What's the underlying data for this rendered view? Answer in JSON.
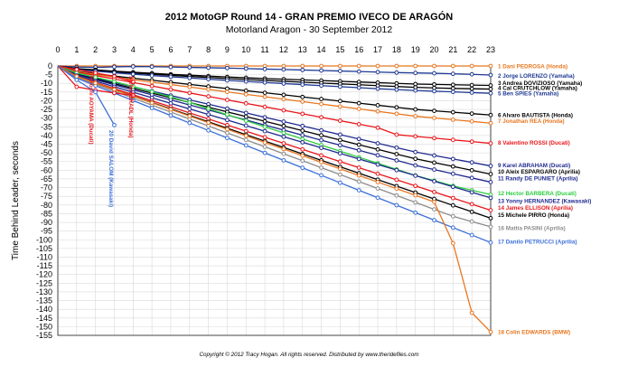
{
  "chart_data": {
    "type": "line",
    "title": "2012 MotoGP Round 14 - GRAN PREMIO IVECO DE ARAGÓN",
    "subtitle": "Motorland Aragon - 30 September 2012",
    "xlabel": "",
    "ylabel": "Time Behind Leader, seconds",
    "xlim": [
      0,
      23
    ],
    "ylim": [
      -155,
      0
    ],
    "x_ticks": [
      "0",
      "1",
      "2",
      "3",
      "4",
      "5",
      "6",
      "7",
      "8",
      "9",
      "10",
      "11",
      "12",
      "13",
      "14",
      "15",
      "16",
      "17",
      "18",
      "19",
      "20",
      "21",
      "22",
      "23"
    ],
    "y_ticks": [
      "0",
      "-5",
      "-10",
      "-15",
      "-20",
      "-25",
      "-30",
      "-35",
      "-40",
      "-45",
      "-50",
      "-55",
      "-60",
      "-65",
      "-70",
      "-75",
      "-80",
      "-85",
      "-90",
      "-95",
      "-100",
      "-105",
      "-110",
      "-115",
      "-120",
      "-125",
      "-130",
      "-135",
      "-140",
      "-145",
      "-150",
      "-155"
    ],
    "grid": true,
    "footer": "Copyright © 2012 Tracy Hogan. All rights reserved. Distributed by www.theridefiles.com",
    "series": [
      {
        "name": "1 Dani PEDROSA (Honda)",
        "color": "#e87722",
        "label_y": 0,
        "values": [
          0,
          0,
          0,
          0,
          0,
          0,
          0,
          0,
          0,
          0,
          0,
          0,
          0,
          0,
          0,
          0,
          0,
          0,
          0,
          0,
          0,
          0,
          0,
          0
        ]
      },
      {
        "name": "2 Jorge LORENZO (Yamaha)",
        "color": "#1f3a93",
        "label_y": -5.5,
        "values": [
          0,
          -0.6,
          -0.8,
          -0.5,
          -0.3,
          -0.4,
          -0.6,
          -0.8,
          -1,
          -1.2,
          -1.5,
          -1.8,
          -2,
          -2.3,
          -2.6,
          -2.9,
          -3.2,
          -3.5,
          -3.8,
          -4,
          -4.2,
          -4.5,
          -4.8,
          -5.2
        ]
      },
      {
        "name": "3 Andrea DOVIZIOSO (Yamaha)",
        "color": "#000000",
        "label_y": -9.5,
        "values": [
          0,
          -1.5,
          -2.2,
          -3,
          -3.6,
          -4.2,
          -4.8,
          -5.3,
          -5.8,
          -6.3,
          -6.8,
          -7.2,
          -7.6,
          -8,
          -8.4,
          -8.8,
          -9.2,
          -9.6,
          -10,
          -10.4,
          -10.6,
          -10.8,
          -11,
          -11.2
        ]
      },
      {
        "name": "4 Cal CRUTCHLOW (Yamaha)",
        "color": "#000000",
        "label_y": -12.5,
        "values": [
          0,
          -1.7,
          -2.6,
          -3.4,
          -4.1,
          -4.7,
          -5.4,
          -6,
          -6.6,
          -7.2,
          -7.8,
          -8.3,
          -8.8,
          -9.3,
          -9.8,
          -10.3,
          -10.8,
          -11.3,
          -11.8,
          -12.3,
          -12.6,
          -12.9,
          -13.1,
          -13.3
        ]
      },
      {
        "name": "5 Ben SPIES (Yamaha)",
        "color": "#1f3a93",
        "label_y": -15.5,
        "values": [
          0,
          -2,
          -3,
          -3.9,
          -4.7,
          -5.5,
          -6.2,
          -6.9,
          -7.6,
          -8.3,
          -8.9,
          -9.5,
          -10.1,
          -10.7,
          -11.3,
          -11.9,
          -12.5,
          -13.1,
          -13.6,
          -14.1,
          -14.5,
          -14.9,
          -15.3,
          -15.7
        ]
      },
      {
        "name": "6 Alvaro BAUTISTA (Honda)",
        "color": "#000000",
        "label_y": -28,
        "values": [
          0,
          -3,
          -4.5,
          -5.8,
          -7,
          -8.2,
          -9.4,
          -10.6,
          -11.8,
          -13,
          -14.2,
          -15.4,
          -16.6,
          -17.8,
          -19,
          -20.2,
          -21.4,
          -22.6,
          -23.8,
          -25,
          -25.8,
          -26.6,
          -27.4,
          -28.2
        ]
      },
      {
        "name": "7 Jonathan REA (Honda)",
        "color": "#e87722",
        "label_y": -31.5,
        "values": [
          0,
          -3.2,
          -4.9,
          -6.4,
          -7.9,
          -9.3,
          -10.7,
          -12.1,
          -13.5,
          -14.9,
          -16.3,
          -17.7,
          -19.1,
          -20.5,
          -21.9,
          -23.3,
          -24.7,
          -26.1,
          -27.5,
          -28.9,
          -29.9,
          -30.9,
          -31.9,
          -32.9
        ]
      },
      {
        "name": "8 Valentino ROSSI (Ducati)",
        "color": "#e8161b",
        "label_y": -44,
        "values": [
          0,
          -3.5,
          -5.5,
          -7.5,
          -9.5,
          -11.5,
          -13.5,
          -15.5,
          -17.5,
          -19.5,
          -21.5,
          -23.5,
          -25.5,
          -27.5,
          -29.5,
          -31.5,
          -33.5,
          -35.5,
          -39.5,
          -40.5,
          -41.5,
          -42.5,
          -43.5,
          -44.5
        ]
      },
      {
        "name": "9 Karel ABRAHAM (Ducati)",
        "color": "#1f2a8f",
        "label_y": -57,
        "values": [
          0,
          -4.5,
          -7,
          -9.5,
          -12,
          -14.5,
          -17,
          -19.5,
          -22,
          -24.5,
          -27,
          -29.5,
          -32,
          -34.5,
          -37,
          -39.5,
          -42,
          -44.5,
          -47,
          -49.5,
          -51.5,
          -53.5,
          -55.5,
          -57.5
        ]
      },
      {
        "name": "10 Aleix ESPARGARO (Aprilia)",
        "color": "#000000",
        "label_y": -60.5,
        "values": [
          0,
          -4.8,
          -7.5,
          -10.2,
          -12.9,
          -15.6,
          -18.3,
          -21,
          -23.7,
          -26.4,
          -29.1,
          -31.8,
          -34.5,
          -37.2,
          -39.9,
          -42.6,
          -45.3,
          -48,
          -50.7,
          -53.4,
          -55.6,
          -57.8,
          -60,
          -62.2
        ]
      },
      {
        "name": "11 Randy DE PUNIET (Aprilia)",
        "color": "#1f2a8f",
        "label_y": -64.5,
        "values": [
          0,
          -5,
          -7.9,
          -10.8,
          -13.7,
          -16.6,
          -19.5,
          -22.4,
          -25.3,
          -28.2,
          -31.1,
          -34,
          -36.9,
          -39.8,
          -42.7,
          -45.6,
          -48.5,
          -51.4,
          -54.3,
          -57.2,
          -59.6,
          -62,
          -64.4,
          -66.8
        ]
      },
      {
        "name": "12 Hector BARBERA (Ducati)",
        "color": "#2ecc40",
        "label_y": -73,
        "values": [
          0,
          -4,
          -6.5,
          -9,
          -11.8,
          -14.8,
          -17.8,
          -21,
          -24.5,
          -28,
          -31.5,
          -35,
          -38.5,
          -42,
          -45.5,
          -49,
          -52.5,
          -56,
          -59.5,
          -63,
          -66,
          -69,
          -71.5,
          -74
        ]
      },
      {
        "name": "13 Yonny HERNANDEZ (Kawasaki)",
        "color": "#1f2a8f",
        "label_y": -77.5,
        "values": [
          0,
          -5.5,
          -8.7,
          -11.9,
          -15.1,
          -18.3,
          -21.5,
          -24.7,
          -27.9,
          -31.1,
          -34.3,
          -37.5,
          -40.7,
          -43.9,
          -47.1,
          -50.3,
          -53.5,
          -56.7,
          -59.9,
          -63.1,
          -66.3,
          -69.5,
          -72.7,
          -75.9
        ]
      },
      {
        "name": "14 James ELLISON (Aprilia)",
        "color": "#e8161b",
        "label_y": -81.5,
        "values": [
          0,
          -6,
          -9.5,
          -13,
          -16.5,
          -20,
          -23.5,
          -27,
          -30.5,
          -34,
          -37.5,
          -41,
          -44.5,
          -48,
          -51.5,
          -55,
          -58.5,
          -62,
          -65.5,
          -69,
          -72.5,
          -76,
          -79.5,
          -83
        ]
      },
      {
        "name": "15 Michele PIRRO (Honda)",
        "color": "#000000",
        "label_y": -85.5,
        "values": [
          0,
          -6.2,
          -9.9,
          -13.6,
          -17.3,
          -21,
          -24.7,
          -28.4,
          -32.1,
          -35.8,
          -39.5,
          -43.2,
          -46.9,
          -50.6,
          -54.3,
          -58,
          -61.7,
          -65.4,
          -69.1,
          -72.8,
          -76.5,
          -80.2,
          -83.9,
          -87.6
        ]
      },
      {
        "name": "16 Mattia PASINI (Aprilia)",
        "color": "#8c8c8c",
        "label_y": -93,
        "values": [
          0,
          -6.5,
          -10.5,
          -14.5,
          -18.5,
          -22.5,
          -26.5,
          -30.5,
          -34.5,
          -38.5,
          -42.5,
          -46.5,
          -50.5,
          -54.5,
          -58.5,
          -62.5,
          -66.5,
          -70.5,
          -74.5,
          -78.5,
          -82.5,
          -86.5,
          -89.5,
          -92.5
        ]
      },
      {
        "name": "17 Danilo PETRUCCI (Aprilia)",
        "color": "#3b6fd9",
        "label_y": -101,
        "values": [
          0,
          -7,
          -11.3,
          -15.6,
          -19.9,
          -24.2,
          -28.5,
          -32.8,
          -37.1,
          -41.4,
          -45.7,
          -50,
          -54.3,
          -58.6,
          -62.9,
          -67.2,
          -71.5,
          -75.8,
          -80.1,
          -84.4,
          -88.7,
          -93,
          -97.3,
          -101.6
        ]
      },
      {
        "name": "18 Colin EDWARDS (BMW)",
        "color": "#e87722",
        "label_y": -153,
        "values": [
          0,
          -6,
          -9.8,
          -13.6,
          -17.4,
          -21.2,
          -25,
          -28.8,
          -32.6,
          -36.4,
          -40.2,
          -44,
          -47.8,
          -51.6,
          -55.4,
          -59.2,
          -63,
          -66.8,
          -70.6,
          -74.4,
          -78.2,
          -102,
          -142,
          -153
        ]
      },
      {
        "name": "Hiroshi AOYAMA (Ducati)",
        "color": "#e8161b",
        "label_y": null,
        "values": [
          0,
          -12,
          -14,
          -15.5,
          -17
        ]
      },
      {
        "name": "Stefan BRADL (Honda)",
        "color": "#e8161b",
        "label_y": null,
        "values": [
          0,
          -2,
          -4,
          -6,
          -9
        ]
      },
      {
        "name": "20 David SALOM (Kawasaki)",
        "color": "#3b6fd9",
        "label_y": null,
        "values": [
          0,
          -8,
          -15,
          -34
        ]
      }
    ],
    "retire_labels": [
      {
        "text": "Hiroshi AOYAMA (Ducati)",
        "color": "#e8161b"
      },
      {
        "text": "Stefan BRADL (Honda)",
        "color": "#e8161b"
      },
      {
        "text": "20 David SALOM (Kawasaki)",
        "color": "#3b6fd9"
      }
    ]
  }
}
